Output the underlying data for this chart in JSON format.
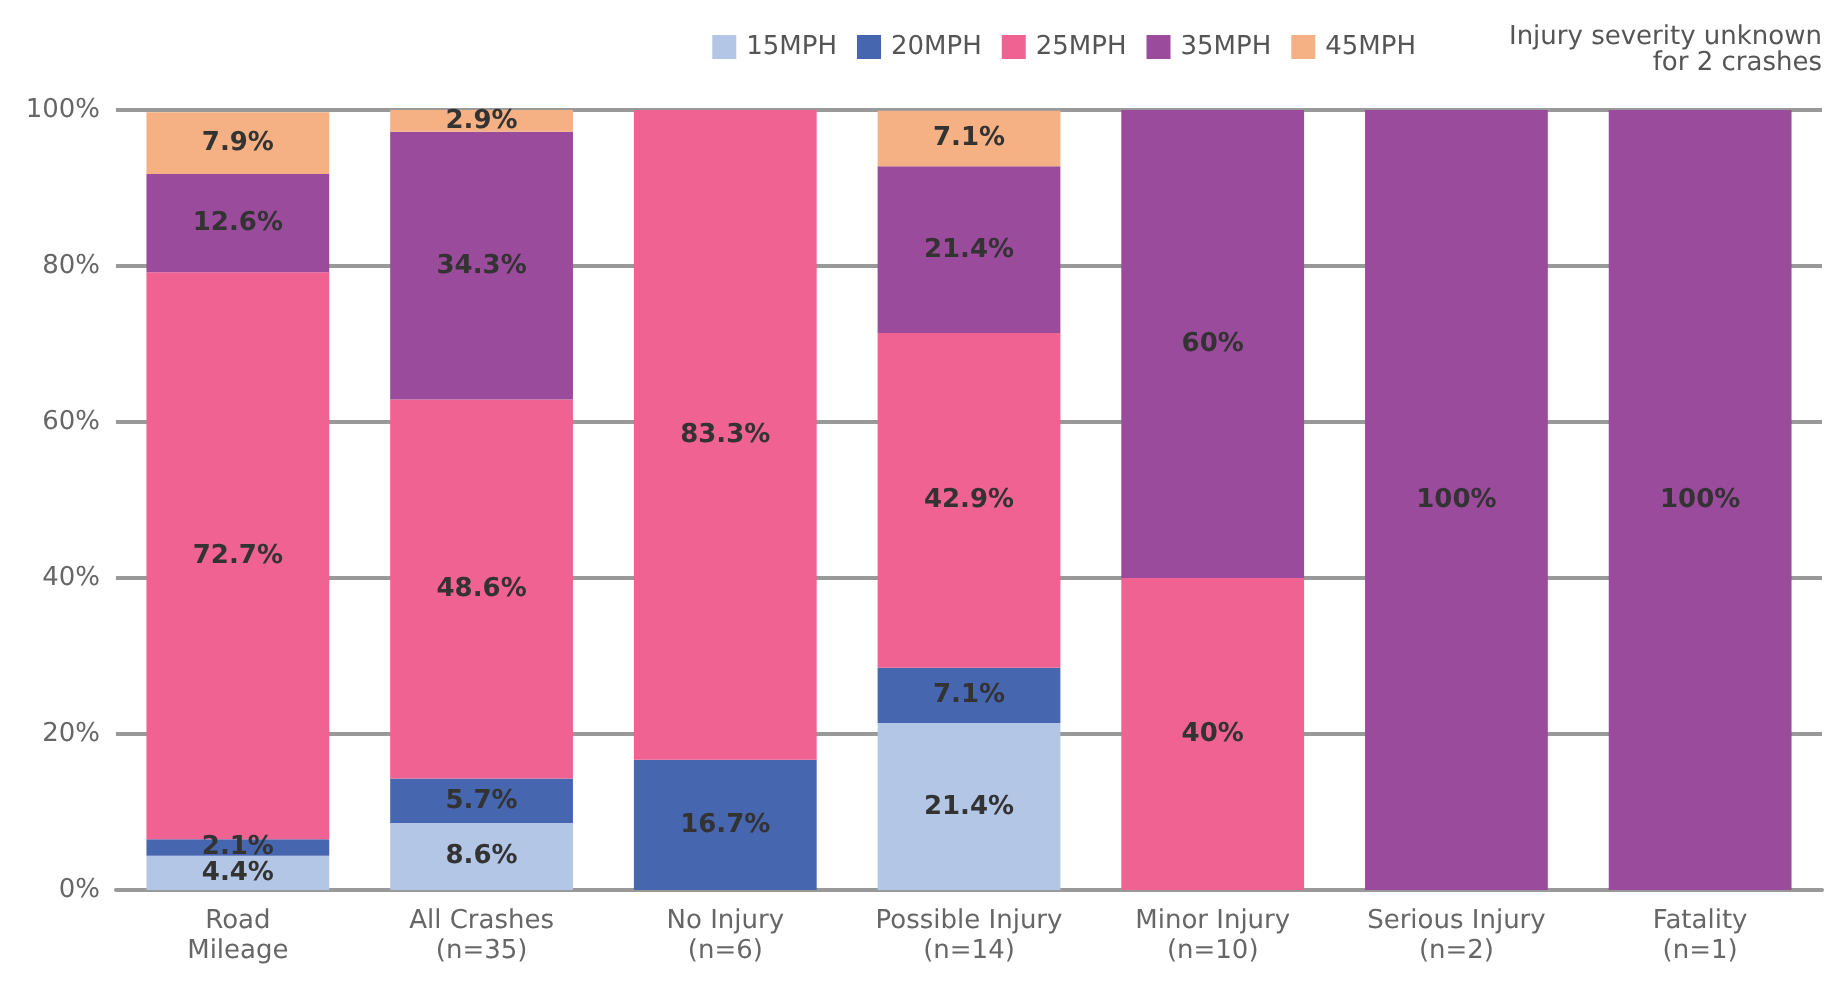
{
  "chart_data": {
    "type": "bar",
    "stacked": true,
    "categories": [
      "Road\nMileage",
      "All Crashes\n(n=35)",
      "No Injury\n(n=6)",
      "Possible Injury\n(n=14)",
      "Minor Injury\n(n=10)",
      "Serious Injury\n(n=2)",
      "Fatality\n(n=1)"
    ],
    "series": [
      {
        "name": "15MPH",
        "color": "#b3c6e6",
        "values": [
          4.4,
          8.6,
          null,
          21.4,
          null,
          null,
          null
        ],
        "value_labels": [
          "4.4%",
          "8.6%",
          null,
          "21.4%",
          null,
          null,
          null
        ]
      },
      {
        "name": "20MPH",
        "color": "#4766b0",
        "values": [
          2.1,
          5.7,
          16.7,
          7.1,
          null,
          null,
          null
        ],
        "value_labels": [
          "2.1%",
          "5.7%",
          "16.7%",
          "7.1%",
          null,
          null,
          null
        ]
      },
      {
        "name": "25MPH",
        "color": "#f06292",
        "values": [
          72.7,
          48.6,
          83.3,
          42.9,
          40,
          null,
          null
        ],
        "value_labels": [
          "72.7%",
          "48.6%",
          "83.3%",
          "42.9%",
          "40%",
          null,
          null
        ]
      },
      {
        "name": "35MPH",
        "color": "#9b4b9b",
        "values": [
          12.6,
          34.3,
          null,
          21.4,
          60,
          100,
          100
        ],
        "value_labels": [
          "12.6%",
          "34.3%",
          null,
          "21.4%",
          "60%",
          "100%",
          "100%"
        ]
      },
      {
        "name": "45MPH",
        "color": "#f5b183",
        "values": [
          7.9,
          2.9,
          null,
          7.1,
          null,
          null,
          null
        ],
        "value_labels": [
          "7.9%",
          "2.9%",
          null,
          "7.1%",
          null,
          null,
          null
        ]
      }
    ],
    "ylim": [
      0,
      100
    ],
    "yticks": [
      {
        "value": 0,
        "label": "0%"
      },
      {
        "value": 20,
        "label": "20%"
      },
      {
        "value": 40,
        "label": "40%"
      },
      {
        "value": 60,
        "label": "60%"
      },
      {
        "value": 80,
        "label": "80%"
      },
      {
        "value": 100,
        "label": "100%"
      }
    ],
    "grid": "y",
    "legend": "top right",
    "annotations": [
      "Injury severity unknown\nfor 2 crashes"
    ]
  }
}
